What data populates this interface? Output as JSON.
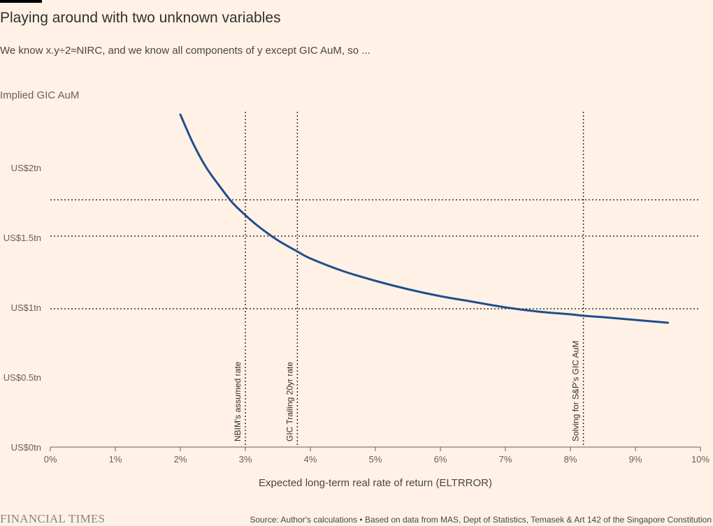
{
  "header": {
    "title": "Playing around with two unknown variables",
    "subtitle": "We know x.y÷2≈NIRC, and we know all components of y except GIC AuM, so ..."
  },
  "footer": {
    "logo": "FINANCIAL TIMES",
    "source": "Source: Author's calculations • Based on data from MAS, Dept of Statistics, Temasek & Art 142 of the Singapore Constitution"
  },
  "chart_data": {
    "type": "line",
    "title": "Playing around with two unknown variables",
    "ylabel": "Implied GIC AuM",
    "xlabel": "Expected long-term real rate of return (ELTRROR)",
    "xlim": [
      0,
      10
    ],
    "ylim": [
      0,
      2.4
    ],
    "x_ticks": [
      {
        "value": 0,
        "label": "0%"
      },
      {
        "value": 1,
        "label": "1%"
      },
      {
        "value": 2,
        "label": "2%"
      },
      {
        "value": 3,
        "label": "3%"
      },
      {
        "value": 4,
        "label": "4%"
      },
      {
        "value": 5,
        "label": "5%"
      },
      {
        "value": 6,
        "label": "6%"
      },
      {
        "value": 7,
        "label": "7%"
      },
      {
        "value": 8,
        "label": "8%"
      },
      {
        "value": 9,
        "label": "9%"
      },
      {
        "value": 10,
        "label": "10%"
      }
    ],
    "y_ticks": [
      {
        "value": 0,
        "label": "US$0tn"
      },
      {
        "value": 0.5,
        "label": "US$0.5tn"
      },
      {
        "value": 1,
        "label": "US$1tn"
      },
      {
        "value": 1.5,
        "label": "US$1.5tn"
      },
      {
        "value": 2,
        "label": "US$2tn"
      }
    ],
    "series": [
      {
        "color": "#1f4e8c",
        "x": [
          2.0,
          2.2,
          2.4,
          2.6,
          2.8,
          3.0,
          3.2,
          3.5,
          3.8,
          4.0,
          4.5,
          5.0,
          5.5,
          6.0,
          6.5,
          7.0,
          7.5,
          8.0,
          8.2,
          8.5,
          9.0,
          9.5
        ],
        "y": [
          2.38,
          2.17,
          2.0,
          1.87,
          1.75,
          1.66,
          1.58,
          1.48,
          1.4,
          1.35,
          1.26,
          1.19,
          1.13,
          1.08,
          1.04,
          1.0,
          0.97,
          0.95,
          0.94,
          0.93,
          0.91,
          0.89
        ]
      }
    ],
    "reference_lines": [
      {
        "orientation": "vertical",
        "x": 3.0,
        "label": "NBIM's assumed rate"
      },
      {
        "orientation": "vertical",
        "x": 3.8,
        "label": "GIC Trailing 20yr rate"
      },
      {
        "orientation": "vertical",
        "x": 8.2,
        "label": "Solving for S&P's GIC AuM"
      },
      {
        "orientation": "horizontal",
        "y": 1.77
      },
      {
        "orientation": "horizontal",
        "y": 1.51
      },
      {
        "orientation": "horizontal",
        "y": 0.99
      }
    ],
    "grid": false,
    "line_style": "dotted"
  }
}
